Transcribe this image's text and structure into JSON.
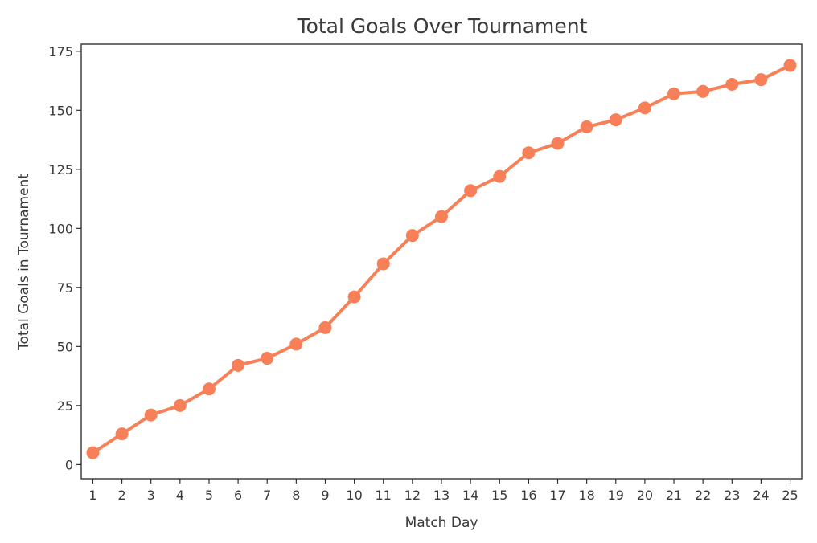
{
  "chart_data": {
    "type": "line",
    "title": "Total Goals Over Tournament",
    "xlabel": "Match Day",
    "ylabel": "Total Goals in Tournament",
    "x": [
      1,
      2,
      3,
      4,
      5,
      6,
      7,
      8,
      9,
      10,
      11,
      12,
      13,
      14,
      15,
      16,
      17,
      18,
      19,
      20,
      21,
      22,
      23,
      24,
      25
    ],
    "x_tick_labels": [
      "1",
      "2",
      "3",
      "4",
      "5",
      "6",
      "7",
      "8",
      "9",
      "10",
      "11",
      "12",
      "13",
      "14",
      "15",
      "16",
      "17",
      "18",
      "19",
      "20",
      "21",
      "22",
      "23",
      "24",
      "25"
    ],
    "series": [
      {
        "values": [
          5,
          13,
          21,
          25,
          32,
          42,
          45,
          51,
          58,
          71,
          85,
          97,
          105,
          116,
          122,
          132,
          136,
          143,
          146,
          151,
          157,
          158,
          161,
          163,
          169
        ],
        "color": "#f88058",
        "marker": "circle"
      }
    ],
    "y_ticks": [
      0,
      25,
      50,
      75,
      100,
      125,
      150,
      175
    ],
    "ylim": [
      -6,
      178
    ],
    "xlim": [
      0.6,
      25.4
    ],
    "grid": false,
    "legend": "none"
  }
}
